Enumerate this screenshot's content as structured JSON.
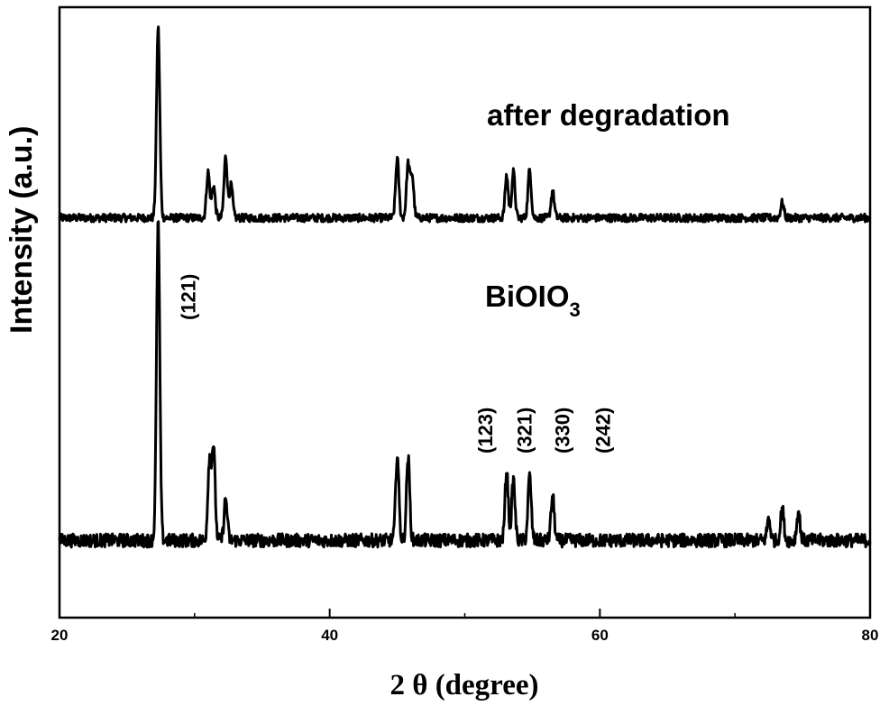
{
  "chart_data": {
    "type": "line",
    "xlabel": "2 θ (degree)",
    "ylabel": "Intensity (a.u.)",
    "xlim": [
      20,
      80
    ],
    "xticks": [
      "20",
      "40",
      "60",
      "80"
    ],
    "yticks_shown": false,
    "series": [
      {
        "name": "after degradation",
        "baseline": 3,
        "peaks": [
          {
            "x": 27.3,
            "y": 100
          },
          {
            "x": 31.0,
            "y": 24
          },
          {
            "x": 31.4,
            "y": 17
          },
          {
            "x": 32.3,
            "y": 32
          },
          {
            "x": 32.7,
            "y": 17
          },
          {
            "x": 45.0,
            "y": 31
          },
          {
            "x": 45.8,
            "y": 28
          },
          {
            "x": 46.1,
            "y": 22
          },
          {
            "x": 53.1,
            "y": 22
          },
          {
            "x": 53.6,
            "y": 24
          },
          {
            "x": 54.8,
            "y": 25
          },
          {
            "x": 56.5,
            "y": 14
          },
          {
            "x": 73.5,
            "y": 8
          }
        ]
      },
      {
        "name": "BiOIO3",
        "name_main": "BiOIO",
        "name_subscript": "3",
        "baseline": 3,
        "peaks": [
          {
            "x": 27.3,
            "y": 100
          },
          {
            "x": 31.1,
            "y": 25
          },
          {
            "x": 31.4,
            "y": 29
          },
          {
            "x": 32.3,
            "y": 13
          },
          {
            "x": 45.0,
            "y": 27
          },
          {
            "x": 45.8,
            "y": 26
          },
          {
            "x": 53.1,
            "y": 22
          },
          {
            "x": 53.6,
            "y": 19
          },
          {
            "x": 54.8,
            "y": 20
          },
          {
            "x": 56.5,
            "y": 14
          },
          {
            "x": 72.5,
            "y": 7
          },
          {
            "x": 73.5,
            "y": 10
          },
          {
            "x": 74.7,
            "y": 9
          }
        ]
      }
    ],
    "annotations": [
      {
        "text": "(121)",
        "x": 29.5
      },
      {
        "text": "(123)",
        "x": 51.5
      },
      {
        "text": "(321)",
        "x": 54.4
      },
      {
        "text": "(330)",
        "x": 57.2
      },
      {
        "text": "(242)",
        "x": 60.2
      }
    ],
    "grid": false,
    "legend": "none"
  }
}
